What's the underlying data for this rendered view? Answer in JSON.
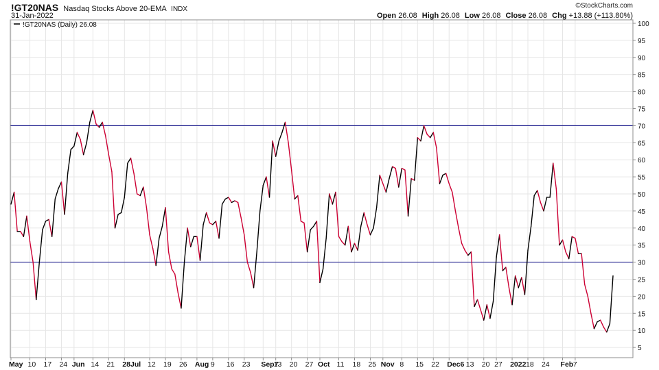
{
  "header": {
    "symbol": "!GT20NAS",
    "name": "Nasdaq Stocks Above 20-EMA",
    "exchange": "INDX",
    "date": "31-Jan-2022",
    "copyright": "©StockCharts.com",
    "open_label": "Open",
    "open": "26.08",
    "high_label": "High",
    "high": "26.08",
    "low_label": "Low",
    "low": "26.08",
    "close_label": "Close",
    "close": "26.08",
    "chg_label": "Chg",
    "chg": "+13.88 (+113.80%)"
  },
  "legend": {
    "label": "!GT20NAS (Daily) 26.08"
  },
  "colors": {
    "up": "#000000",
    "down": "#cc0033",
    "hline": "#000080",
    "grid": "#e6e6e6",
    "frame": "#8c8c8c"
  },
  "chart_data": {
    "type": "line",
    "ylim": [
      0,
      100
    ],
    "yticks": [
      5,
      10,
      15,
      20,
      25,
      30,
      35,
      40,
      45,
      50,
      55,
      60,
      65,
      70,
      75,
      80,
      85,
      90,
      95,
      100
    ],
    "hlines": [
      30,
      70
    ],
    "xticks": [
      {
        "i": 0,
        "label": "May",
        "bold": true
      },
      {
        "i": 6,
        "label": "10"
      },
      {
        "i": 11,
        "label": "17"
      },
      {
        "i": 16,
        "label": "24"
      },
      {
        "i": 20,
        "label": "Jun",
        "bold": true
      },
      {
        "i": 26,
        "label": "14"
      },
      {
        "i": 31,
        "label": "21"
      },
      {
        "i": 36,
        "label": "28Jul",
        "bold": true
      },
      {
        "i": 44,
        "label": "12"
      },
      {
        "i": 49,
        "label": "19"
      },
      {
        "i": 54,
        "label": "26"
      },
      {
        "i": 59,
        "label": "Aug",
        "bold": true
      },
      {
        "i": 64,
        "label": "9"
      },
      {
        "i": 69,
        "label": "16"
      },
      {
        "i": 74,
        "label": "23"
      },
      {
        "i": 80,
        "label": "Sep7",
        "bold": true
      },
      {
        "i": 84,
        "label": "13"
      },
      {
        "i": 89,
        "label": "20"
      },
      {
        "i": 94,
        "label": "27"
      },
      {
        "i": 98,
        "label": "Oct",
        "bold": true
      },
      {
        "i": 104,
        "label": "11"
      },
      {
        "i": 109,
        "label": "18"
      },
      {
        "i": 114,
        "label": "25"
      },
      {
        "i": 118,
        "label": "Nov",
        "bold": true
      },
      {
        "i": 124,
        "label": "8"
      },
      {
        "i": 129,
        "label": "15"
      },
      {
        "i": 134,
        "label": "22"
      },
      {
        "i": 139,
        "label": "Dec6",
        "bold": true
      },
      {
        "i": 145,
        "label": "13"
      },
      {
        "i": 150,
        "label": "20"
      },
      {
        "i": 154,
        "label": "27"
      },
      {
        "i": 159,
        "label": "2022",
        "bold": true
      },
      {
        "i": 164,
        "label": "18"
      },
      {
        "i": 169,
        "label": "24"
      },
      {
        "i": 175,
        "label": "Feb",
        "bold": true
      },
      {
        "i": 179,
        "label": "7"
      }
    ],
    "series": [
      {
        "values": [
          47,
          50.5,
          39,
          39,
          37.5,
          43.5,
          36,
          30,
          19,
          30,
          39.5,
          42,
          42.5,
          37.5,
          48.5,
          51.5,
          53.5,
          44,
          56,
          63,
          64,
          68,
          66,
          61.5,
          65,
          71,
          74.5,
          70.5,
          69.5,
          71,
          67,
          61.5,
          56.5,
          40,
          44,
          44.5,
          49,
          59,
          60.5,
          56,
          50,
          49.5,
          52,
          46,
          38,
          34,
          29,
          37,
          40.5,
          46,
          33,
          28,
          26.5,
          21,
          16.5,
          30,
          40,
          34.5,
          37.5,
          37.5,
          30.5,
          41,
          44.5,
          41.5,
          41,
          42,
          37,
          47,
          48.5,
          49,
          47.5,
          48,
          47.5,
          43,
          38,
          30,
          27,
          22.5,
          33,
          45,
          52.5,
          55,
          49,
          65.5,
          61,
          65.5,
          68,
          71,
          65,
          57,
          48.5,
          49.5,
          42,
          41.5,
          33,
          39.5,
          40.5,
          42,
          24,
          28,
          37,
          50,
          47,
          50.5,
          37.5,
          36,
          35,
          40.5,
          33,
          35.5,
          33.5,
          40.5,
          44.5,
          41,
          38,
          40,
          46,
          55.5,
          53,
          50.5,
          54.5,
          58,
          57.5,
          52,
          57.5,
          57,
          43.5,
          54.5,
          54,
          66.5,
          65.5,
          70,
          67.5,
          66.5,
          68,
          63.5,
          53,
          55.5,
          56,
          53,
          50.5,
          45,
          40,
          35.5,
          33.5,
          32,
          33,
          17,
          19,
          16,
          13,
          17.5,
          13.5,
          18.5,
          31.5,
          38,
          27.5,
          28.5,
          22.5,
          17.5,
          26,
          22.5,
          25.5,
          20.5,
          33.5,
          40.5,
          49.5,
          51,
          47.5,
          45,
          49,
          49,
          59,
          51.5,
          35,
          36.5,
          33,
          31,
          37.5,
          37,
          32.5,
          32.5,
          23.5,
          20,
          15,
          10.5,
          12.5,
          13,
          11,
          9.5,
          12,
          26
        ]
      }
    ]
  }
}
